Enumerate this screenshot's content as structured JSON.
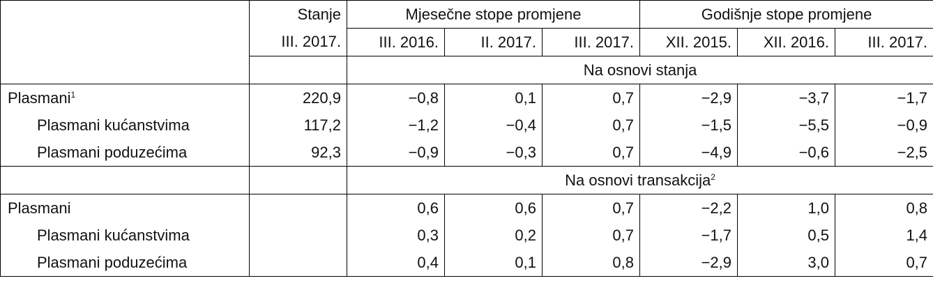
{
  "header": {
    "stanje": "Stanje",
    "stanje_date": "III. 2017.",
    "monthly": "Mjesečne stope promjene",
    "annual": "Godišnje stope promjene",
    "periods": [
      "III. 2016.",
      "II. 2017.",
      "III. 2017.",
      "XII. 2015.",
      "XII. 2016.",
      "III. 2017."
    ]
  },
  "sections": [
    {
      "title": "Na osnovi stanja",
      "rows": [
        {
          "label": "Plasmani",
          "note": "1",
          "stanje": "220,9",
          "values": [
            "−0,8",
            "0,1",
            "0,7",
            "−2,9",
            "−3,7",
            "−1,7"
          ]
        },
        {
          "label": "Plasmani kućanstvima",
          "stanje": "117,2",
          "values": [
            "−1,2",
            "−0,4",
            "0,7",
            "−1,5",
            "−5,5",
            "−0,9"
          ]
        },
        {
          "label": "Plasmani poduzećima",
          "stanje": "92,3",
          "values": [
            "−0,9",
            "−0,3",
            "0,7",
            "−4,9",
            "−0,6",
            "−2,5"
          ]
        }
      ]
    },
    {
      "title": "Na osnovi transakcija",
      "note": "2",
      "rows": [
        {
          "label": "Plasmani",
          "values": [
            "0,6",
            "0,6",
            "0,7",
            "−2,2",
            "1,0",
            "0,8"
          ]
        },
        {
          "label": "Plasmani kućanstvima",
          "values": [
            "0,3",
            "0,2",
            "0,7",
            "−1,7",
            "0,5",
            "1,4"
          ]
        },
        {
          "label": "Plasmani poduzećima",
          "values": [
            "0,4",
            "0,1",
            "0,8",
            "−2,9",
            "3,0",
            "0,7"
          ]
        }
      ]
    }
  ]
}
